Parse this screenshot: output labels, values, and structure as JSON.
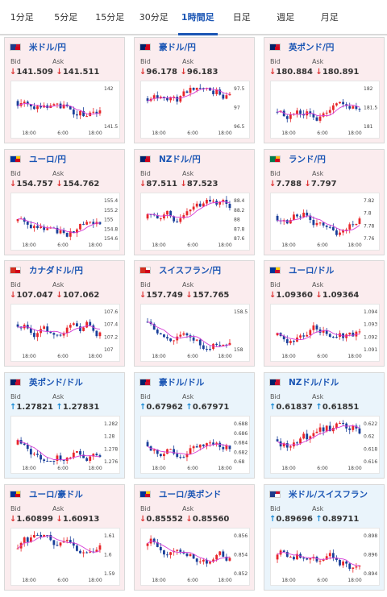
{
  "tabs": [
    {
      "label": "1分足",
      "active": false
    },
    {
      "label": "5分足",
      "active": false
    },
    {
      "label": "15分足",
      "active": false
    },
    {
      "label": "30分足",
      "active": false
    },
    {
      "label": "1時間足",
      "active": true
    },
    {
      "label": "日足",
      "active": false
    },
    {
      "label": "週足",
      "active": false
    },
    {
      "label": "月足",
      "active": false
    }
  ],
  "labels": {
    "bid": "Bid",
    "ask": "Ask"
  },
  "colors": {
    "down_bg": "#fbecee",
    "up_bg": "#eaf4fb",
    "up_candle": "#e8262a",
    "down_candle": "#1a3f9a",
    "ma": "#d63ad6",
    "link": "#1a55b4"
  },
  "cards": [
    {
      "pair": "米ドル/円",
      "flag": "us-jp",
      "trend": "down",
      "bid": "141.509",
      "ask": "141.511",
      "yticks": [
        "142",
        "141.5"
      ],
      "xticks": [
        "18:00",
        "6:00",
        "18:00"
      ]
    },
    {
      "pair": "豪ドル/円",
      "flag": "au-jp",
      "trend": "down",
      "bid": "96.178",
      "ask": "96.183",
      "yticks": [
        "97.5",
        "97",
        "96.5"
      ],
      "xticks": [
        "18:00",
        "6:00",
        "18:00"
      ]
    },
    {
      "pair": "英ポンド/円",
      "flag": "gb-jp",
      "trend": "down",
      "bid": "180.884",
      "ask": "180.891",
      "yticks": [
        "182",
        "181.5",
        "181"
      ],
      "xticks": [
        "18:00",
        "6:00",
        "18:00"
      ]
    },
    {
      "pair": "ユーロ/円",
      "flag": "eu-jp",
      "trend": "down",
      "bid": "154.757",
      "ask": "154.762",
      "yticks": [
        "155.4",
        "155.2",
        "155",
        "154.8",
        "154.6"
      ],
      "xticks": [
        "18:00",
        "6:00",
        "18:00"
      ]
    },
    {
      "pair": "NZドル/円",
      "flag": "nz-jp",
      "trend": "down",
      "bid": "87.511",
      "ask": "87.523",
      "yticks": [
        "88.4",
        "88.2",
        "88",
        "87.8",
        "87.6"
      ],
      "xticks": [
        "18:00",
        "6:00",
        "18:00"
      ]
    },
    {
      "pair": "ランド/円",
      "flag": "za-jp",
      "trend": "down",
      "bid": "7.788",
      "ask": "7.797",
      "yticks": [
        "7.82",
        "7.8",
        "7.78",
        "7.76"
      ],
      "xticks": [
        "18:00",
        "6:00",
        "18:00"
      ]
    },
    {
      "pair": "カナダドル/円",
      "flag": "ca-jp",
      "trend": "down",
      "bid": "107.047",
      "ask": "107.062",
      "yticks": [
        "107.6",
        "107.4",
        "107.2",
        "107"
      ],
      "xticks": [
        "18:00",
        "6:00",
        "18:00"
      ]
    },
    {
      "pair": "スイスフラン/円",
      "flag": "ch-jp",
      "trend": "down",
      "bid": "157.749",
      "ask": "157.765",
      "yticks": [
        "158.5",
        "158"
      ],
      "xticks": [
        "18:00",
        "6:00",
        "18:00"
      ]
    },
    {
      "pair": "ユーロ/ドル",
      "flag": "eu-us",
      "trend": "down",
      "bid": "1.09360",
      "ask": "1.09364",
      "yticks": [
        "1.094",
        "1.093",
        "1.092",
        "1.091"
      ],
      "xticks": [
        "18:00",
        "6:00",
        "18:00"
      ]
    },
    {
      "pair": "英ポンド/ドル",
      "flag": "gb-us",
      "trend": "up",
      "bid": "1.27821",
      "ask": "1.27831",
      "yticks": [
        "1.282",
        "1.28",
        "1.278",
        "1.276"
      ],
      "xticks": [
        "18:00",
        "6:00",
        "18:00"
      ]
    },
    {
      "pair": "豪ドル/ドル",
      "flag": "au-us",
      "trend": "up",
      "bid": "0.67962",
      "ask": "0.67971",
      "yticks": [
        "0.688",
        "0.686",
        "0.684",
        "0.682",
        "0.68"
      ],
      "xticks": [
        "18:00",
        "6:00",
        "18:00"
      ]
    },
    {
      "pair": "NZドル/ドル",
      "flag": "nz-us",
      "trend": "up",
      "bid": "0.61837",
      "ask": "0.61851",
      "yticks": [
        "0.622",
        "0.62",
        "0.618",
        "0.616"
      ],
      "xticks": [
        "18:00",
        "6:00",
        "18:00"
      ]
    },
    {
      "pair": "ユーロ/豪ドル",
      "flag": "eu-au",
      "trend": "down",
      "bid": "1.60899",
      "ask": "1.60913",
      "yticks": [
        "1.61",
        "1.6",
        "1.59"
      ],
      "xticks": [
        "18:00",
        "6:00",
        "18:00"
      ]
    },
    {
      "pair": "ユーロ/英ポンド",
      "flag": "eu-gb",
      "trend": "down",
      "bid": "0.85552",
      "ask": "0.85560",
      "yticks": [
        "0.856",
        "0.854",
        "0.852"
      ],
      "xticks": [
        "18:00",
        "6:00",
        "18:00"
      ]
    },
    {
      "pair": "米ドル/スイスフラン",
      "flag": "us-ch",
      "trend": "up",
      "bid": "0.89696",
      "ask": "0.89711",
      "yticks": [
        "0.898",
        "0.896",
        "0.894"
      ],
      "xticks": [
        "18:00",
        "6:00",
        "18:00"
      ]
    }
  ]
}
